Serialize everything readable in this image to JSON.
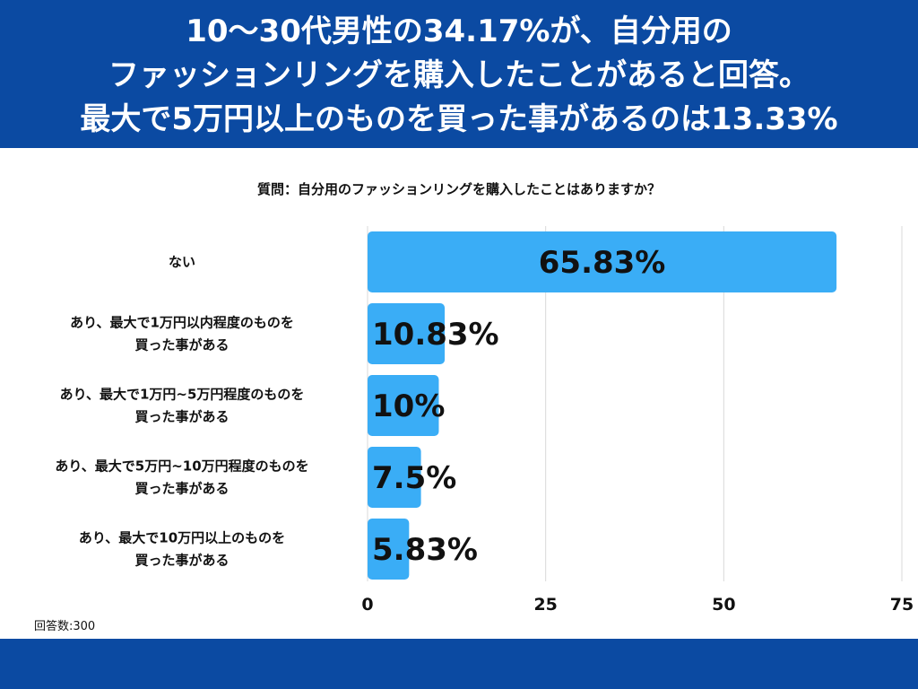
{
  "header": {
    "title_lines": [
      "10〜30代男性の34.17%が、自分用の",
      "ファッションリングを購入したことがあると回答。",
      "最大で5万円以上のものを買った事があるのは13.33%"
    ]
  },
  "chart_data": {
    "type": "bar",
    "orientation": "horizontal",
    "title": "質問：自分用のファッションリングを購入したことはありますか？",
    "categories": [
      [
        "ない"
      ],
      [
        "あり、最大で1万円以内程度のものを",
        "買った事がある"
      ],
      [
        "あり、最大で1万円~5万円程度のものを",
        "買った事がある"
      ],
      [
        "あり、最大で5万円~10万円程度のものを",
        "買った事がある"
      ],
      [
        "あり、最大で10万円以上のものを",
        "買った事がある"
      ]
    ],
    "values": [
      65.83,
      10.83,
      10,
      7.5,
      5.83
    ],
    "value_labels": [
      "65.83%",
      "10.83%",
      "10%",
      "7.5%",
      "5.83%"
    ],
    "xlim": [
      0,
      75
    ],
    "xticks": [
      0,
      25,
      50,
      75
    ],
    "grid": true,
    "bar_color": "#3aadf6"
  },
  "note": "回答数:300",
  "colors": {
    "header_bg": "#0b4aa2",
    "footer_bg": "#0b4aa2",
    "bar": "#3aadf6",
    "grid": "#d9d9d9"
  }
}
